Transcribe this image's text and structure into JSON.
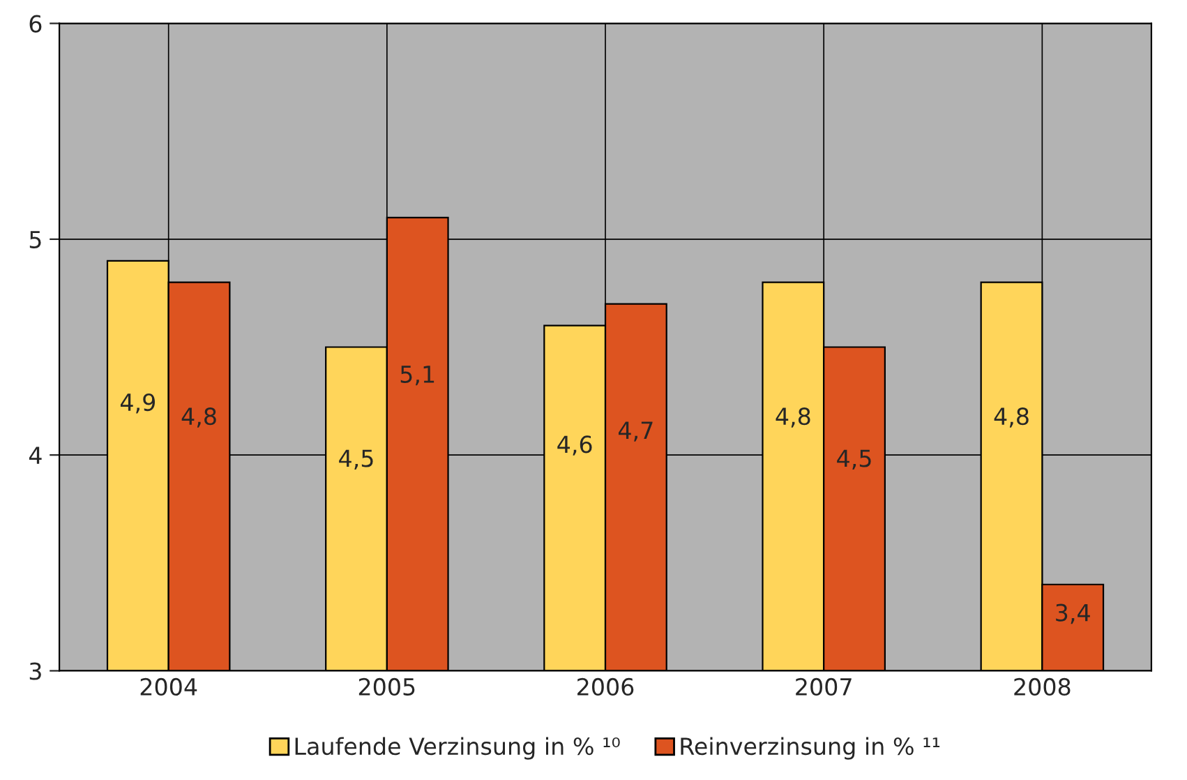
{
  "chart_data": {
    "type": "bar",
    "categories": [
      "2004",
      "2005",
      "2006",
      "2007",
      "2008"
    ],
    "series": [
      {
        "name": "Laufende Verzinsung in % ¹⁰",
        "color": "#ffd55a",
        "values": [
          4.9,
          4.5,
          4.6,
          4.8,
          4.8
        ],
        "value_labels": [
          "4,9",
          "4,5",
          "4,6",
          "4,8",
          "4,8"
        ]
      },
      {
        "name": "Reinverzinsung in % ¹¹",
        "color": "#dd5420",
        "values": [
          4.8,
          5.1,
          4.7,
          4.5,
          3.4
        ],
        "value_labels": [
          "4,8",
          "5,1",
          "4,7",
          "4,5",
          "3,4"
        ]
      }
    ],
    "ylim": [
      3,
      6
    ],
    "yticks": [
      3,
      4,
      5,
      6
    ],
    "grid": true,
    "legend": "bottom"
  }
}
